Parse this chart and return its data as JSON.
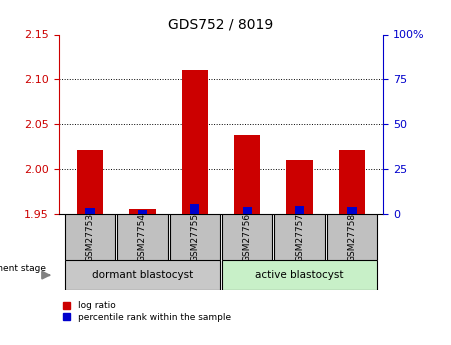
{
  "title": "GDS752 / 8019",
  "samples": [
    "GSM27753",
    "GSM27754",
    "GSM27755",
    "GSM27756",
    "GSM27757",
    "GSM27758"
  ],
  "log_ratio": [
    2.021,
    1.956,
    2.11,
    2.038,
    2.01,
    2.021
  ],
  "percentile_rank": [
    3.5,
    2.0,
    5.5,
    4.0,
    4.5,
    4.0
  ],
  "ylim_left": [
    1.95,
    2.15
  ],
  "ylim_right": [
    0,
    100
  ],
  "yticks_left": [
    1.95,
    2.0,
    2.05,
    2.1,
    2.15
  ],
  "yticks_right": [
    0,
    25,
    50,
    75,
    100
  ],
  "ytick_labels_right": [
    "0",
    "25",
    "50",
    "75",
    "100%"
  ],
  "gridlines": [
    2.0,
    2.05,
    2.1
  ],
  "bar_width": 0.5,
  "red_color": "#cc0000",
  "blue_color": "#0000cc",
  "group1_label": "dormant blastocyst",
  "group2_label": "active blastocyst",
  "group1_color": "#c0c0c0",
  "group2_color": "#c8f0c8",
  "left_axis_color": "#cc0000",
  "right_axis_color": "#0000cc",
  "baseline": 1.95,
  "legend_red": "log ratio",
  "legend_blue": "percentile rank within the sample"
}
